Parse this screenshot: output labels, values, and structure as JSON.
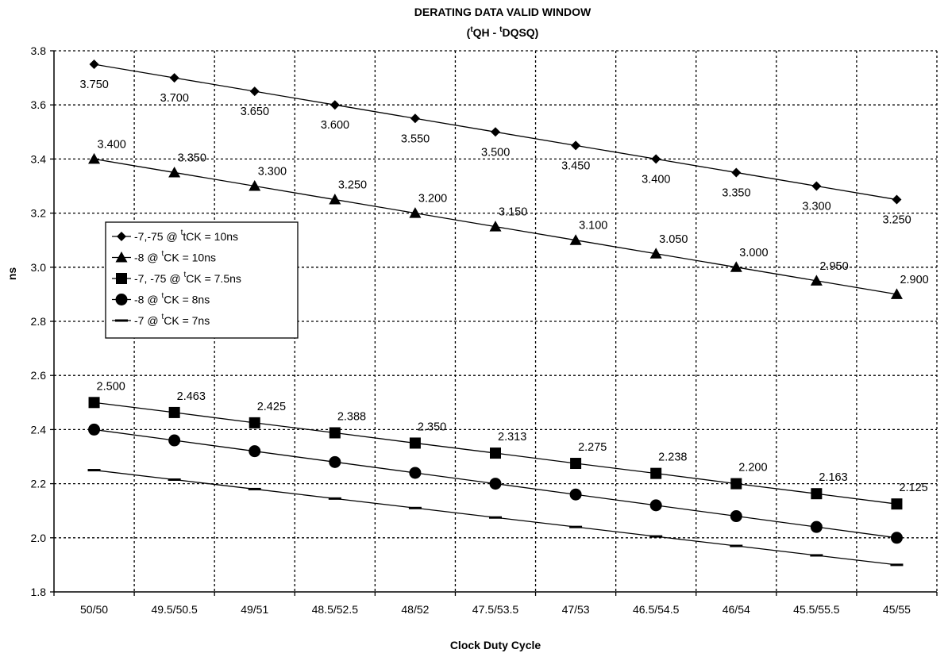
{
  "chart_data": {
    "type": "line",
    "title": "DERATING DATA VALID WINDOW",
    "subtitle": {
      "open": "(",
      "sup1": "t",
      "part1": "QH - ",
      "sup2": "t",
      "part2": "DQSQ)"
    },
    "xlabel": "Clock Duty Cycle",
    "ylabel": "ns",
    "ylim": [
      1.8,
      3.8
    ],
    "yticks": [
      "1.8",
      "2.0",
      "2.2",
      "2.4",
      "2.6",
      "2.8",
      "3.0",
      "3.2",
      "3.4",
      "3.6",
      "3.8"
    ],
    "grid": true,
    "legend_position": "left-middle",
    "categories": [
      "50/50",
      "49.5/50.5",
      "49/51",
      "48.5/52.5",
      "48/52",
      "47.5/53.5",
      "47/53",
      "46.5/54.5",
      "46/54",
      "45.5/55.5",
      "45/55"
    ],
    "series": [
      {
        "marker": "diamond",
        "legend": {
          "pre": "-7,-75 @ ",
          "sup": "t",
          "post": "tCK = 10ns"
        },
        "values": [
          3.75,
          3.7,
          3.65,
          3.6,
          3.55,
          3.5,
          3.45,
          3.4,
          3.35,
          3.3,
          3.25
        ],
        "labels": [
          "3.750",
          "3.700",
          "3.650",
          "3.600",
          "3.550",
          "3.500",
          "3.450",
          "3.400",
          "3.350",
          "3.300",
          "3.250"
        ]
      },
      {
        "marker": "triangle",
        "legend": {
          "pre": "-8 @ ",
          "sup": "t",
          "post": "CK = 10ns"
        },
        "values": [
          3.4,
          3.35,
          3.3,
          3.25,
          3.2,
          3.15,
          3.1,
          3.05,
          3.0,
          2.95,
          2.9
        ],
        "labels": [
          "3.400",
          "3.350",
          "3.300",
          "3.250",
          "3.200",
          "3.150",
          "3.100",
          "3.050",
          "3.000",
          "2.950",
          "2.900"
        ]
      },
      {
        "marker": "square",
        "legend": {
          "pre": "-7, -75 @ ",
          "sup": "t",
          "post": "CK = 7.5ns"
        },
        "values": [
          2.5,
          2.463,
          2.425,
          2.388,
          2.35,
          2.313,
          2.275,
          2.238,
          2.2,
          2.163,
          2.125
        ],
        "labels": [
          "2.500",
          "2.463",
          "2.425",
          "2.388",
          "2.350",
          "2.313",
          "2.275",
          "2.238",
          "2.200",
          "2.163",
          "2.125"
        ]
      },
      {
        "marker": "circle",
        "legend": {
          "pre": "-8 @ ",
          "sup": "t",
          "post": "CK = 8ns"
        },
        "values": [
          2.4,
          2.36,
          2.32,
          2.28,
          2.24,
          2.2,
          2.16,
          2.12,
          2.08,
          2.04,
          2.0
        ],
        "labels": []
      },
      {
        "marker": "dash",
        "legend": {
          "pre": "-7 @ ",
          "sup": "t",
          "post": "CK = 7ns"
        },
        "values": [
          2.25,
          2.215,
          2.18,
          2.145,
          2.11,
          2.075,
          2.04,
          2.005,
          1.97,
          1.935,
          1.9
        ],
        "labels": []
      }
    ]
  }
}
